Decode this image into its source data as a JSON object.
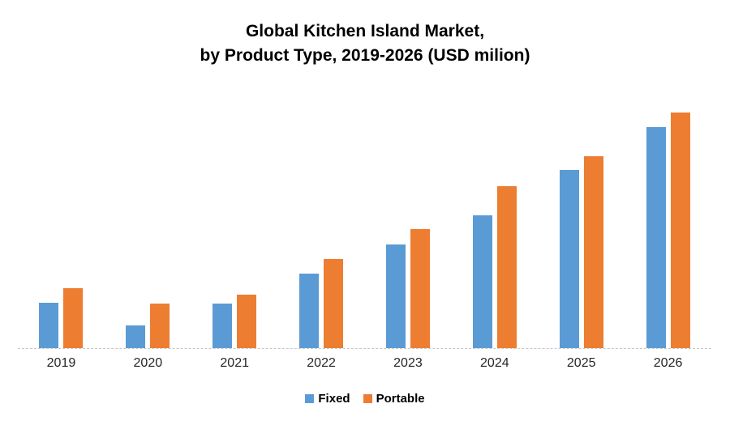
{
  "title": {
    "line1": "Global Kitchen Island Market,",
    "line2": "by Product Type, 2019-2026 (USD milion)"
  },
  "colors": {
    "fixed": "#5B9BD5",
    "portable": "#ED7D31",
    "axis_line": "#c8c8c8",
    "text": "#000000",
    "background": "#ffffff"
  },
  "legend": {
    "items": [
      {
        "label": "Fixed",
        "color": "#5B9BD5"
      },
      {
        "label": "Portable",
        "color": "#ED7D31"
      }
    ],
    "position": "bottom"
  },
  "chart_data": {
    "type": "bar",
    "title": "Global Kitchen Island Market, by Product Type, 2019-2026 (USD milion)",
    "categories": [
      "2019",
      "2020",
      "2021",
      "2022",
      "2023",
      "2024",
      "2025",
      "2026"
    ],
    "series": [
      {
        "name": "Fixed",
        "color": "#5B9BD5",
        "values": [
          56,
          28,
          55,
          92,
          128,
          164,
          220,
          273
        ]
      },
      {
        "name": "Portable",
        "color": "#ED7D31",
        "values": [
          74,
          55,
          66,
          110,
          147,
          200,
          237,
          291
        ]
      }
    ],
    "xlabel": "",
    "ylabel": "",
    "ylim": [
      0,
      330
    ],
    "y_axis_visible": false,
    "gridlines": false,
    "legend_position": "bottom",
    "units": "relative (no value axis shown in chart)"
  }
}
